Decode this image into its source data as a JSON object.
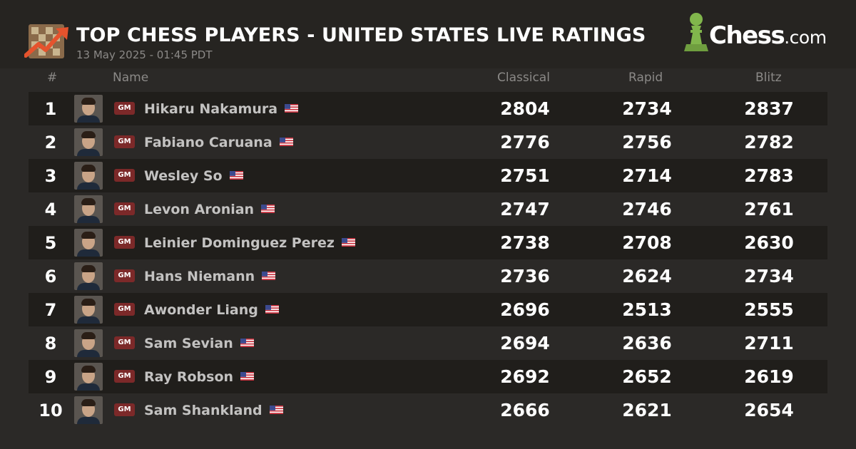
{
  "header": {
    "title": "TOP CHESS PLAYERS - UNITED STATES LIVE RATINGS",
    "subtitle": "13 May 2025 - 01:45 PDT",
    "logo": {
      "name": "Chess",
      "suffix": ".com",
      "icon": "pawn-icon"
    },
    "icon": "trending-chart-icon"
  },
  "columns": {
    "rank": "#",
    "name": "Name",
    "classical": "Classical",
    "rapid": "Rapid",
    "blitz": "Blitz"
  },
  "colors": {
    "badge": "#7c2929",
    "logo_green": "#81b64c",
    "accent_trend": "#e5532d"
  },
  "players": [
    {
      "rank": "1",
      "title": "GM",
      "name": "Hikaru Nakamura",
      "flag": "us-flag-icon",
      "classical": "2804",
      "rapid": "2734",
      "blitz": "2837"
    },
    {
      "rank": "2",
      "title": "GM",
      "name": "Fabiano Caruana",
      "flag": "us-flag-icon",
      "classical": "2776",
      "rapid": "2756",
      "blitz": "2782"
    },
    {
      "rank": "3",
      "title": "GM",
      "name": "Wesley So",
      "flag": "us-flag-icon",
      "classical": "2751",
      "rapid": "2714",
      "blitz": "2783"
    },
    {
      "rank": "4",
      "title": "GM",
      "name": "Levon Aronian",
      "flag": "us-flag-icon",
      "classical": "2747",
      "rapid": "2746",
      "blitz": "2761"
    },
    {
      "rank": "5",
      "title": "GM",
      "name": "Leinier Dominguez Perez",
      "flag": "us-flag-icon",
      "classical": "2738",
      "rapid": "2708",
      "blitz": "2630"
    },
    {
      "rank": "6",
      "title": "GM",
      "name": "Hans Niemann",
      "flag": "us-flag-icon",
      "classical": "2736",
      "rapid": "2624",
      "blitz": "2734"
    },
    {
      "rank": "7",
      "title": "GM",
      "name": "Awonder Liang",
      "flag": "us-flag-icon",
      "classical": "2696",
      "rapid": "2513",
      "blitz": "2555"
    },
    {
      "rank": "8",
      "title": "GM",
      "name": "Sam Sevian",
      "flag": "us-flag-icon",
      "classical": "2694",
      "rapid": "2636",
      "blitz": "2711"
    },
    {
      "rank": "9",
      "title": "GM",
      "name": "Ray Robson",
      "flag": "us-flag-icon",
      "classical": "2692",
      "rapid": "2652",
      "blitz": "2619"
    },
    {
      "rank": "10",
      "title": "GM",
      "name": "Sam Shankland",
      "flag": "us-flag-icon",
      "classical": "2666",
      "rapid": "2621",
      "blitz": "2654"
    }
  ]
}
